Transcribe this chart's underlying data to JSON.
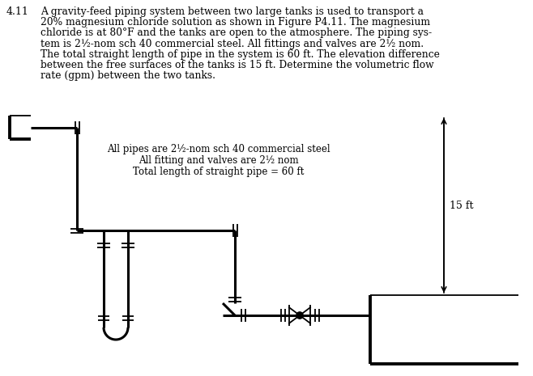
{
  "title_number": "4.11",
  "problem_text_lines": [
    "A gravity-feed piping system between two large tanks is used to transport a",
    "20% magnesium chloride solution as shown in Figure P4.11. The magnesium",
    "chloride is at 80°F and the tanks are open to the atmosphere. The piping sys-",
    "tem is 2½-nom sch 40 commercial steel. All fittings and valves are 2½ nom.",
    "The total straight length of pipe in the system is 60 ft. The elevation difference",
    "between the free surfaces of the tanks is 15 ft. Determine the volumetric flow",
    "rate (gpm) between the two tanks."
  ],
  "annotation_lines": [
    "All pipes are 2½-nom sch 40 commercial steel",
    "All fitting and valves are 2½ nom",
    "Total length of straight pipe = 60 ft"
  ],
  "dimension_label": "15 ft",
  "bg_color": "#ffffff",
  "line_color": "#000000",
  "text_color": "#000000",
  "lw_main": 2.2,
  "lw_thin": 1.3,
  "lw_tank": 2.8
}
